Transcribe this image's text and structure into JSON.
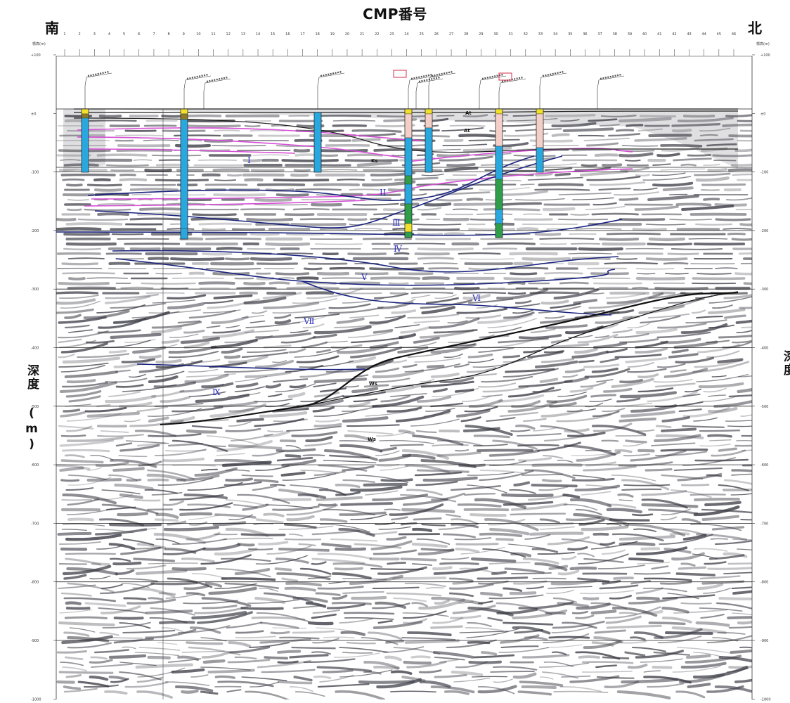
{
  "header": {
    "title": "CMP番号",
    "south": "南",
    "north": "北"
  },
  "axes": {
    "depth_label": "深度 (m)",
    "depth_label_right": "深度",
    "unit_left": "標高(m)",
    "unit_right": "標高(m)",
    "depth_ticks": [
      "+100",
      "±0",
      "-100",
      "-200",
      "-300",
      "-400",
      "-500",
      "-600",
      "-700",
      "-800",
      "-900",
      "-1000"
    ],
    "cmp_ticks": [
      "1",
      "2",
      "3",
      "4",
      "5",
      "6",
      "7",
      "8",
      "9",
      "10",
      "11",
      "12",
      "13",
      "14",
      "15",
      "16",
      "17",
      "18",
      "19",
      "20",
      "21",
      "22",
      "23",
      "24",
      "25",
      "26",
      "27",
      "28",
      "29",
      "30",
      "31",
      "32",
      "33",
      "34",
      "35",
      "36",
      "37",
      "38",
      "39",
      "40",
      "41",
      "42",
      "43",
      "44",
      "45",
      "46"
    ]
  },
  "units": [
    {
      "id": "I",
      "text": "I"
    },
    {
      "id": "II",
      "text": "II"
    },
    {
      "id": "III",
      "text": "Ⅲ"
    },
    {
      "id": "IV",
      "text": "Ⅳ"
    },
    {
      "id": "V",
      "text": "Ⅴ"
    },
    {
      "id": "VI",
      "text": "Ⅵ"
    },
    {
      "id": "VII",
      "text": "Ⅶ"
    },
    {
      "id": "IX",
      "text": "Ⅸ"
    }
  ],
  "formation_marks": {
    "Ks": "Ks",
    "Ws": "Ws",
    "At": "At"
  },
  "colors": {
    "fault_blue": "#1a237e",
    "horizon_magenta": "#d64fd6",
    "borehole_cyan": "#29a8e0",
    "borehole_green": "#2e9e4a",
    "borehole_yellow": "#f2e12a",
    "borehole_pink": "#f4cfc7",
    "grid": "#222222"
  }
}
